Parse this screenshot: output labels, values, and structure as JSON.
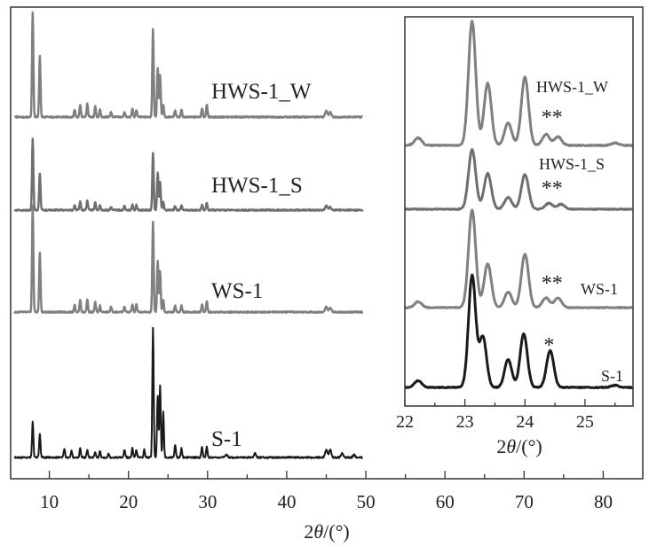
{
  "chart_data": [
    {
      "type": "line",
      "title": "",
      "xlabel_prefix": "2",
      "xlabel_theta": "θ",
      "xlabel_unit": "/(°)",
      "ylabel": "",
      "xlim": [
        5,
        85
      ],
      "xticks": [
        "10",
        "20",
        "30",
        "40",
        "50",
        "60",
        "70",
        "80"
      ],
      "xtick_values": [
        10,
        20,
        30,
        40,
        50,
        60,
        70,
        80
      ],
      "grid": false,
      "series": [
        {
          "name": "HWS-1_W",
          "color": "#7f7f7f",
          "stroke": 2.5,
          "peaks": [
            [
              7.9,
              1.0
            ],
            [
              8.8,
              0.58
            ],
            [
              13.2,
              0.07
            ],
            [
              13.9,
              0.12
            ],
            [
              14.8,
              0.13
            ],
            [
              15.8,
              0.1
            ],
            [
              16.4,
              0.07
            ],
            [
              17.8,
              0.05
            ],
            [
              19.5,
              0.05
            ],
            [
              20.5,
              0.08
            ],
            [
              21.0,
              0.07
            ],
            [
              23.1,
              0.84
            ],
            [
              23.7,
              0.47
            ],
            [
              24.0,
              0.4
            ],
            [
              24.4,
              0.12
            ],
            [
              25.9,
              0.06
            ],
            [
              26.7,
              0.07
            ],
            [
              29.3,
              0.08
            ],
            [
              29.9,
              0.12
            ],
            [
              45.0,
              0.06
            ],
            [
              45.5,
              0.05
            ]
          ]
        },
        {
          "name": "HWS-1_S",
          "color": "#6f6f6f",
          "stroke": 2.5,
          "peaks": [
            [
              7.9,
              0.68
            ],
            [
              8.8,
              0.35
            ],
            [
              13.2,
              0.05
            ],
            [
              13.9,
              0.08
            ],
            [
              14.8,
              0.09
            ],
            [
              15.8,
              0.07
            ],
            [
              16.4,
              0.05
            ],
            [
              17.8,
              0.03
            ],
            [
              19.5,
              0.04
            ],
            [
              20.5,
              0.05
            ],
            [
              21.0,
              0.05
            ],
            [
              23.1,
              0.55
            ],
            [
              23.7,
              0.36
            ],
            [
              24.0,
              0.27
            ],
            [
              24.4,
              0.08
            ],
            [
              25.9,
              0.04
            ],
            [
              26.7,
              0.05
            ],
            [
              29.3,
              0.05
            ],
            [
              29.9,
              0.07
            ],
            [
              45.0,
              0.04
            ],
            [
              45.5,
              0.03
            ]
          ]
        },
        {
          "name": "WS-1",
          "color": "#808080",
          "stroke": 2.5,
          "peaks": [
            [
              7.9,
              0.98
            ],
            [
              8.8,
              0.55
            ],
            [
              13.2,
              0.07
            ],
            [
              13.9,
              0.11
            ],
            [
              14.8,
              0.12
            ],
            [
              15.8,
              0.09
            ],
            [
              16.4,
              0.06
            ],
            [
              17.8,
              0.05
            ],
            [
              19.5,
              0.05
            ],
            [
              20.5,
              0.07
            ],
            [
              21.0,
              0.07
            ],
            [
              23.1,
              0.83
            ],
            [
              23.7,
              0.47
            ],
            [
              24.0,
              0.38
            ],
            [
              24.4,
              0.11
            ],
            [
              25.9,
              0.06
            ],
            [
              26.7,
              0.06
            ],
            [
              29.3,
              0.07
            ],
            [
              29.9,
              0.1
            ],
            [
              45.0,
              0.05
            ],
            [
              45.5,
              0.04
            ]
          ]
        },
        {
          "name": "S-1",
          "color": "#1a1a1a",
          "stroke": 2.0,
          "peaks": [
            [
              7.9,
              0.28
            ],
            [
              8.8,
              0.18
            ],
            [
              11.9,
              0.07
            ],
            [
              12.8,
              0.05
            ],
            [
              13.9,
              0.07
            ],
            [
              14.8,
              0.06
            ],
            [
              15.8,
              0.04
            ],
            [
              16.4,
              0.05
            ],
            [
              17.5,
              0.03
            ],
            [
              19.5,
              0.06
            ],
            [
              20.5,
              0.07
            ],
            [
              21.0,
              0.06
            ],
            [
              22.0,
              0.06
            ],
            [
              23.1,
              1.0
            ],
            [
              23.7,
              0.48
            ],
            [
              24.0,
              0.55
            ],
            [
              24.4,
              0.35
            ],
            [
              25.9,
              0.1
            ],
            [
              26.7,
              0.07
            ],
            [
              29.3,
              0.08
            ],
            [
              29.9,
              0.08
            ],
            [
              32.4,
              0.02
            ],
            [
              36.0,
              0.03
            ],
            [
              45.0,
              0.06
            ],
            [
              45.5,
              0.06
            ],
            [
              47.0,
              0.03
            ],
            [
              48.5,
              0.02
            ]
          ]
        }
      ]
    },
    {
      "type": "line",
      "title": "",
      "xlabel_prefix": "2",
      "xlabel_theta": "θ",
      "xlabel_unit": "/(°)",
      "ylabel": "",
      "xlim": [
        22,
        25.8
      ],
      "xticks": [
        "22",
        "23",
        "24",
        "25"
      ],
      "xtick_values": [
        22,
        23,
        24,
        25
      ],
      "grid": false,
      "series": [
        {
          "name": "HWS-1_W",
          "color": "#7f7f7f",
          "marker": "**",
          "marker_x": 24.45,
          "peaks": [
            [
              22.22,
              0.06
            ],
            [
              23.12,
              1.0
            ],
            [
              23.38,
              0.5
            ],
            [
              23.72,
              0.18
            ],
            [
              24.0,
              0.55
            ],
            [
              24.35,
              0.09
            ],
            [
              24.55,
              0.07
            ],
            [
              25.5,
              0.02
            ]
          ]
        },
        {
          "name": "HWS-1_S",
          "color": "#6f6f6f",
          "marker": "**",
          "marker_x": 24.45,
          "peaks": [
            [
              23.12,
              0.6
            ],
            [
              23.38,
              0.36
            ],
            [
              23.72,
              0.12
            ],
            [
              24.0,
              0.35
            ],
            [
              24.4,
              0.06
            ],
            [
              24.6,
              0.05
            ]
          ]
        },
        {
          "name": "WS-1",
          "color": "#808080",
          "marker": "**",
          "marker_x": 24.45,
          "peaks": [
            [
              22.22,
              0.06
            ],
            [
              23.12,
              1.0
            ],
            [
              23.38,
              0.45
            ],
            [
              23.72,
              0.16
            ],
            [
              24.0,
              0.55
            ],
            [
              24.35,
              0.1
            ],
            [
              24.55,
              0.1
            ]
          ]
        },
        {
          "name": "S-1",
          "color": "#1a1a1a",
          "marker": "*",
          "marker_x": 24.4,
          "peaks": [
            [
              22.22,
              0.06
            ],
            [
              23.12,
              1.0
            ],
            [
              23.3,
              0.45
            ],
            [
              23.72,
              0.25
            ],
            [
              23.98,
              0.48
            ],
            [
              24.42,
              0.33
            ],
            [
              25.5,
              0.02
            ]
          ]
        }
      ]
    }
  ]
}
